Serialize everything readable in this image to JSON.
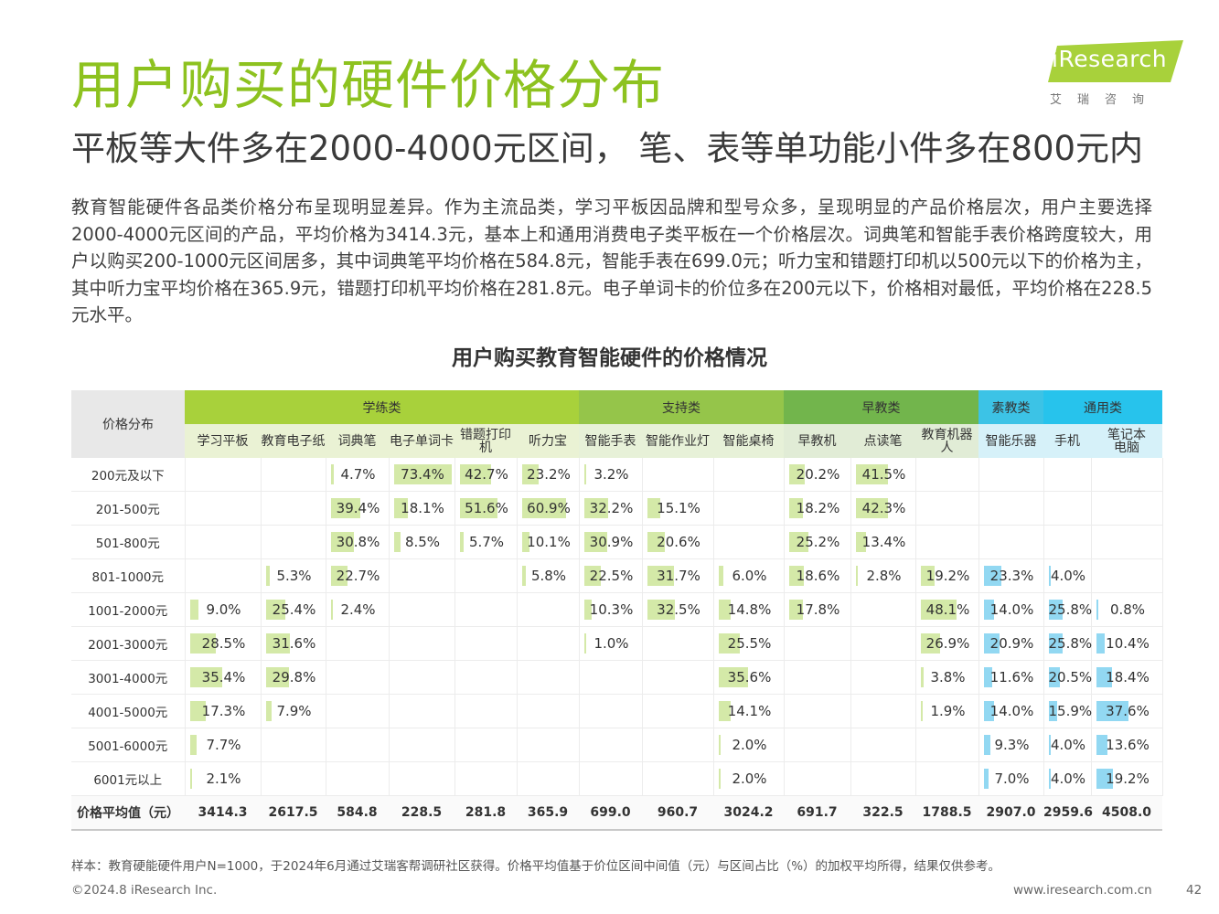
{
  "title": "用户购买的硬件价格分布",
  "subtitle": "平板等大件多在2000-4000元区间， 笔、表等单功能小件多在800元内",
  "logo": {
    "brand": "iResearch",
    "cn": "艾瑞咨询",
    "color": "#a8d13b"
  },
  "body": "教育智能硬件各品类价格分布呈现明显差异。作为主流品类，学习平板因品牌和型号众多，呈现明显的产品价格层次，用户主要选择2000-4000元区间的产品，平均价格为3414.3元，基本上和通用消费电子类平板在一个价格层次。词典笔和智能手表价格跨度较大，用户以购买200-1000元区间居多，其中词典笔平均价格在584.8元，智能手表在699.0元；听力宝和错题打印机以500元以下的价格为主，其中听力宝平均价格在365.9元，错题打印机平均价格在281.8元。电子单词卡的价位多在200元以下，价格相对最低，平均价格在228.5元水平。",
  "chart_data": {
    "type": "table",
    "title": "用户购买教育智能硬件的价格情况",
    "row_header": "价格分布",
    "groups": [
      {
        "name": "学练类",
        "span": 6,
        "color": "#a8d13b"
      },
      {
        "name": "支持类",
        "span": 3,
        "color": "#95c54a"
      },
      {
        "name": "早教类",
        "span": 3,
        "color": "#72b54c"
      },
      {
        "name": "素教类",
        "span": 1,
        "color": "#3cc3e6"
      },
      {
        "name": "通用类",
        "span": 2,
        "color": "#27c3ec"
      }
    ],
    "columns": [
      "学习平板",
      "教育电子纸",
      "词典笔",
      "电子单词卡",
      "错题打印机",
      "听力宝",
      "智能手表",
      "智能作业灯",
      "智能桌椅",
      "早教机",
      "点读笔",
      "教育机器人",
      "智能乐器",
      "手机",
      "笔记本电脑"
    ],
    "column_display": [
      "学习平板",
      "教育电子纸",
      "词典笔",
      "电子单词卡",
      "错题打印机",
      "听力宝",
      "智能手表",
      "智能作业灯",
      "智能桌椅",
      "早教机",
      "点读笔",
      "教育机器人",
      "智能乐器",
      "手机",
      "笔记本\n电脑"
    ],
    "bar_colors": [
      "green",
      "green",
      "green",
      "green",
      "green",
      "green",
      "green",
      "green",
      "green",
      "green",
      "green",
      "green",
      "blue",
      "blue",
      "blue"
    ],
    "rows": [
      "200元及以下",
      "201-500元",
      "501-800元",
      "801-1000元",
      "1001-2000元",
      "2001-3000元",
      "3001-4000元",
      "4001-5000元",
      "5001-6000元",
      "6001元以上"
    ],
    "values": [
      [
        null,
        null,
        4.7,
        73.4,
        42.7,
        23.2,
        3.2,
        null,
        null,
        20.2,
        41.5,
        null,
        null,
        null,
        null
      ],
      [
        null,
        null,
        39.4,
        18.1,
        51.6,
        60.9,
        32.2,
        15.1,
        null,
        18.2,
        42.3,
        null,
        null,
        null,
        null
      ],
      [
        null,
        null,
        30.8,
        8.5,
        5.7,
        10.1,
        30.9,
        20.6,
        null,
        25.2,
        13.4,
        null,
        null,
        null,
        null
      ],
      [
        null,
        5.3,
        22.7,
        null,
        null,
        5.8,
        22.5,
        31.7,
        6.0,
        18.6,
        2.8,
        19.2,
        23.3,
        4.0,
        null
      ],
      [
        9.0,
        25.4,
        2.4,
        null,
        null,
        null,
        10.3,
        32.5,
        14.8,
        17.8,
        null,
        48.1,
        14.0,
        25.8,
        0.8
      ],
      [
        28.5,
        31.6,
        null,
        null,
        null,
        null,
        1.0,
        null,
        25.5,
        null,
        null,
        26.9,
        20.9,
        25.8,
        10.4
      ],
      [
        35.4,
        29.8,
        null,
        null,
        null,
        null,
        null,
        null,
        35.6,
        null,
        null,
        3.8,
        11.6,
        20.5,
        18.4
      ],
      [
        17.3,
        7.9,
        null,
        null,
        null,
        null,
        null,
        null,
        14.1,
        null,
        null,
        1.9,
        14.0,
        15.9,
        37.6
      ],
      [
        7.7,
        null,
        null,
        null,
        null,
        null,
        null,
        null,
        2.0,
        null,
        null,
        null,
        9.3,
        4.0,
        13.6
      ],
      [
        2.1,
        null,
        null,
        null,
        null,
        null,
        null,
        null,
        2.0,
        null,
        null,
        null,
        7.0,
        4.0,
        19.2
      ]
    ],
    "value_labels": [
      [
        null,
        null,
        "4.7%",
        "73.4%",
        "42.7%",
        "23.2%",
        "3.2%",
        null,
        null,
        "20.2%",
        "41.5%",
        null,
        null,
        null,
        null
      ],
      [
        null,
        null,
        "39.4%",
        "18.1%",
        "51.6%",
        "60.9%",
        "32.2%",
        "15.1%",
        null,
        "18.2%",
        "42.3%",
        null,
        null,
        null,
        null
      ],
      [
        null,
        null,
        "30.8%",
        "8.5%",
        "5.7%",
        "10.1%",
        "30.9%",
        "20.6%",
        null,
        "25.2%",
        "13.4%",
        null,
        null,
        null,
        null
      ],
      [
        null,
        "5.3%",
        "22.7%",
        null,
        null,
        "5.8%",
        "22.5%",
        "31.7%",
        "6.0%",
        "18.6%",
        "2.8%",
        "19.2%",
        "23.3%",
        "4.0%",
        null
      ],
      [
        "9.0%",
        "25.4%",
        "2.4%",
        null,
        null,
        null,
        "10.3%",
        "32.5%",
        "14.8%",
        "17.8%",
        null,
        "48.1%",
        "14.0%",
        "25.8%",
        "0.8%"
      ],
      [
        "28.5%",
        "31.6%",
        null,
        null,
        null,
        null,
        "1.0%",
        null,
        "25.5%",
        null,
        null,
        "26.9%",
        "20.9%",
        "25.8%",
        "10.4%"
      ],
      [
        "35.4%",
        "29.8%",
        null,
        null,
        null,
        null,
        null,
        null,
        "35.6%",
        null,
        null,
        "3.8%",
        "11.6%",
        "20.5%",
        "18.4%"
      ],
      [
        "17.3%",
        "7.9%",
        null,
        null,
        null,
        null,
        null,
        null,
        "14.1%",
        null,
        null,
        "1.9%",
        "14.0%",
        "15.9%",
        "37.6%"
      ],
      [
        "7.7%",
        null,
        null,
        null,
        null,
        null,
        null,
        null,
        "2.0%",
        null,
        null,
        null,
        "9.3%",
        "4.0%",
        "13.6%"
      ],
      [
        "2.1%",
        null,
        null,
        null,
        null,
        null,
        null,
        null,
        "2.0%",
        null,
        null,
        null,
        "7.0%",
        "4.0%",
        "19.2%"
      ]
    ],
    "bar_scale_max": 73.4,
    "average_label": "价格平均值（元）",
    "averages": [
      "3414.3",
      "2617.5",
      "584.8",
      "228.5",
      "281.8",
      "365.9",
      "699.0",
      "960.7",
      "3024.2",
      "691.7",
      "322.5",
      "1788.5",
      "2907.0",
      "2959.6",
      "4508.0"
    ]
  },
  "note": "样本：教育硬能硬件用户N=1000，于2024年6月通过艾瑞客帮调研社区获得。价格平均值基于价位区间中间值（元）与区间占比（%）的加权平均所得，结果仅供参考。",
  "footer": {
    "copyright": "©2024.8 iResearch Inc.",
    "website": "www.iresearch.com.cn",
    "page": "42"
  }
}
